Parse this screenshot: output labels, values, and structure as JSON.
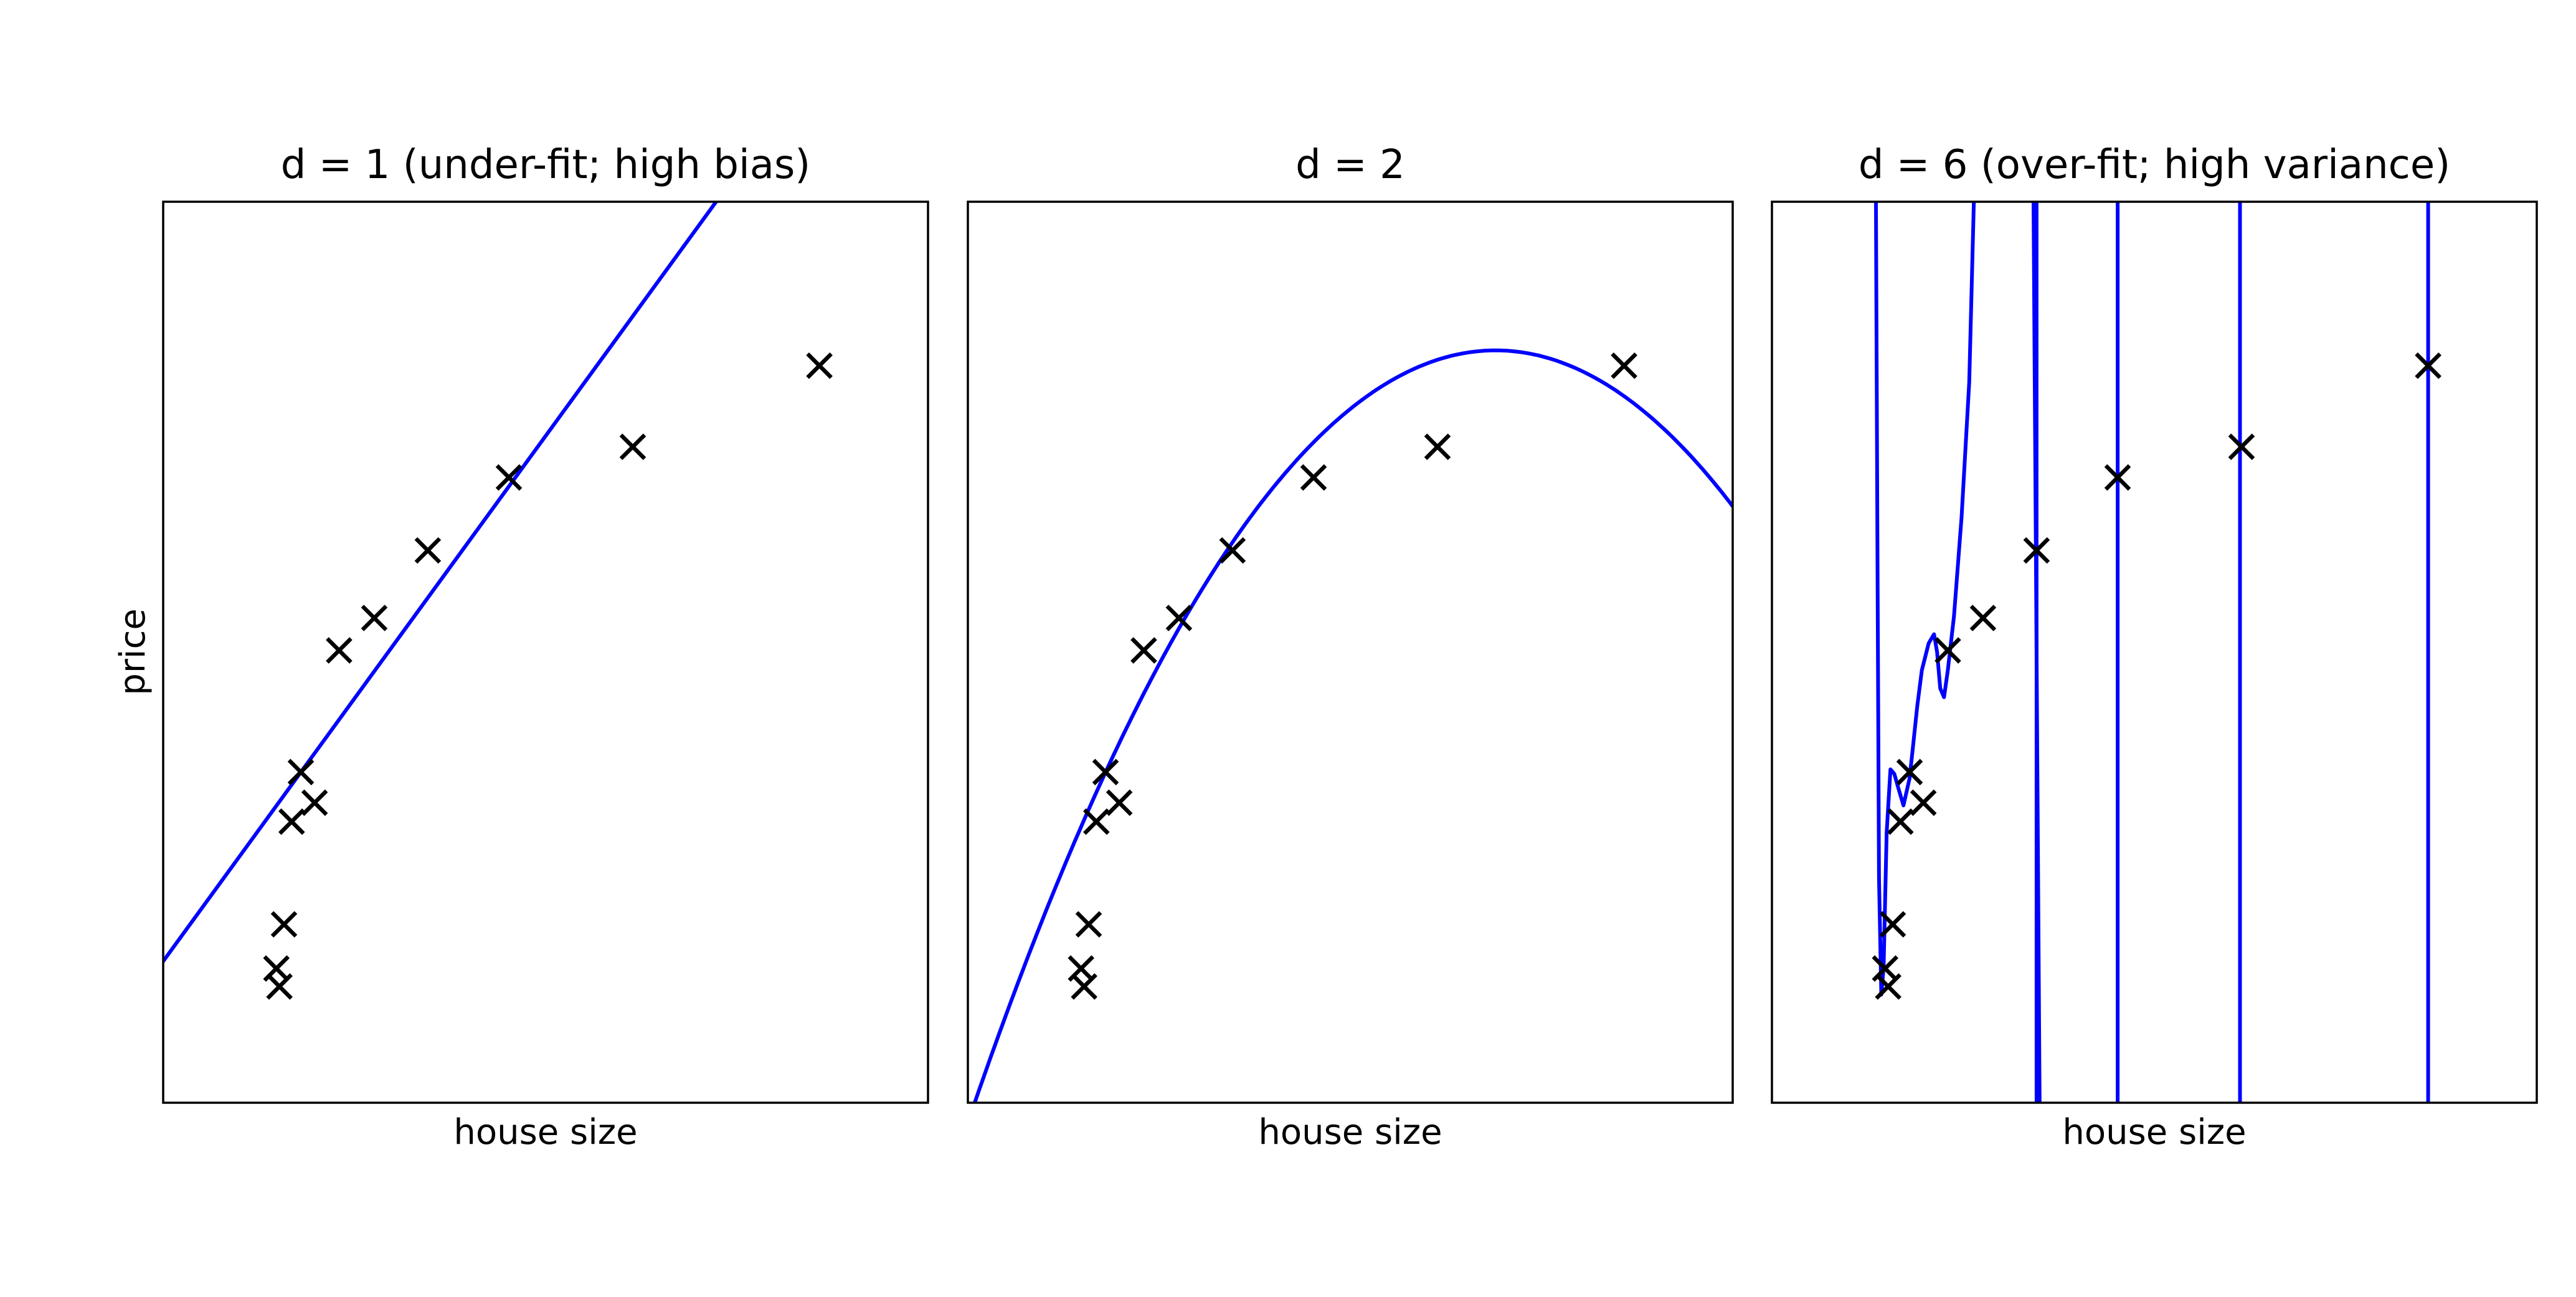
{
  "figure": {
    "ylabel": "price",
    "marker_color": "#000000",
    "fit_line_color": "#0000ff",
    "marker": "x"
  },
  "chart_data": [
    {
      "type": "scatter",
      "title": "d = 1 (under-fit; high bias)",
      "xlabel": "house size",
      "ylabel": "price",
      "grid": false,
      "ticks": false,
      "xlim": [
        0,
        1
      ],
      "ylim": [
        0,
        1
      ],
      "points": [
        {
          "x": 0.152,
          "y": 0.129
        },
        {
          "x": 0.148,
          "y": 0.149
        },
        {
          "x": 0.158,
          "y": 0.198
        },
        {
          "x": 0.168,
          "y": 0.312
        },
        {
          "x": 0.18,
          "y": 0.367
        },
        {
          "x": 0.198,
          "y": 0.333
        },
        {
          "x": 0.23,
          "y": 0.502
        },
        {
          "x": 0.276,
          "y": 0.538
        },
        {
          "x": 0.346,
          "y": 0.613
        },
        {
          "x": 0.452,
          "y": 0.694
        },
        {
          "x": 0.614,
          "y": 0.728
        },
        {
          "x": 0.858,
          "y": 0.818
        }
      ],
      "fit": {
        "degree": 1,
        "coefficients": [
          0.157,
          1.166
        ]
      }
    },
    {
      "type": "scatter",
      "title": "d = 2",
      "xlabel": "house size",
      "grid": false,
      "ticks": false,
      "xlim": [
        0,
        1
      ],
      "ylim": [
        0,
        1
      ],
      "points": [
        {
          "x": 0.152,
          "y": 0.129
        },
        {
          "x": 0.148,
          "y": 0.149
        },
        {
          "x": 0.158,
          "y": 0.198
        },
        {
          "x": 0.168,
          "y": 0.312
        },
        {
          "x": 0.18,
          "y": 0.367
        },
        {
          "x": 0.198,
          "y": 0.333
        },
        {
          "x": 0.23,
          "y": 0.502
        },
        {
          "x": 0.276,
          "y": 0.538
        },
        {
          "x": 0.346,
          "y": 0.613
        },
        {
          "x": 0.452,
          "y": 0.694
        },
        {
          "x": 0.614,
          "y": 0.728
        },
        {
          "x": 0.858,
          "y": 0.818
        }
      ],
      "fit": {
        "degree": 2,
        "vertex_x": 0.69,
        "vertex_y": 0.835,
        "curvature": 1.8
      }
    },
    {
      "type": "scatter",
      "title": "d = 6 (over-fit; high variance)",
      "xlabel": "house size",
      "grid": false,
      "ticks": false,
      "xlim": [
        0,
        1
      ],
      "ylim": [
        0,
        1
      ],
      "points": [
        {
          "x": 0.152,
          "y": 0.129
        },
        {
          "x": 0.148,
          "y": 0.149
        },
        {
          "x": 0.158,
          "y": 0.198
        },
        {
          "x": 0.168,
          "y": 0.312
        },
        {
          "x": 0.18,
          "y": 0.367
        },
        {
          "x": 0.198,
          "y": 0.333
        },
        {
          "x": 0.23,
          "y": 0.502
        },
        {
          "x": 0.276,
          "y": 0.538
        },
        {
          "x": 0.346,
          "y": 0.613
        },
        {
          "x": 0.452,
          "y": 0.694
        },
        {
          "x": 0.614,
          "y": 0.728
        },
        {
          "x": 0.858,
          "y": 0.818
        }
      ],
      "fit": {
        "degree": 6,
        "curve": [
          [
            0.136,
            1.0
          ],
          [
            0.138,
            0.6
          ],
          [
            0.14,
            0.25
          ],
          [
            0.143,
            0.12
          ],
          [
            0.146,
            0.15
          ],
          [
            0.15,
            0.3
          ],
          [
            0.155,
            0.37
          ],
          [
            0.16,
            0.365
          ],
          [
            0.165,
            0.35
          ],
          [
            0.172,
            0.33
          ],
          [
            0.18,
            0.36
          ],
          [
            0.185,
            0.4
          ],
          [
            0.19,
            0.44
          ],
          [
            0.196,
            0.48
          ],
          [
            0.205,
            0.51
          ],
          [
            0.212,
            0.52
          ],
          [
            0.216,
            0.5
          ],
          [
            0.22,
            0.46
          ],
          [
            0.225,
            0.45
          ],
          [
            0.23,
            0.48
          ],
          [
            0.238,
            0.54
          ],
          [
            0.248,
            0.65
          ],
          [
            0.258,
            0.8
          ],
          [
            0.264,
            1.0
          ]
        ],
        "vertical_segments": [
          0.346,
          0.452,
          0.612,
          0.858
        ],
        "crossing_to_bottom": {
          "x_top": 0.342,
          "x_bottom": 0.35
        }
      }
    }
  ]
}
